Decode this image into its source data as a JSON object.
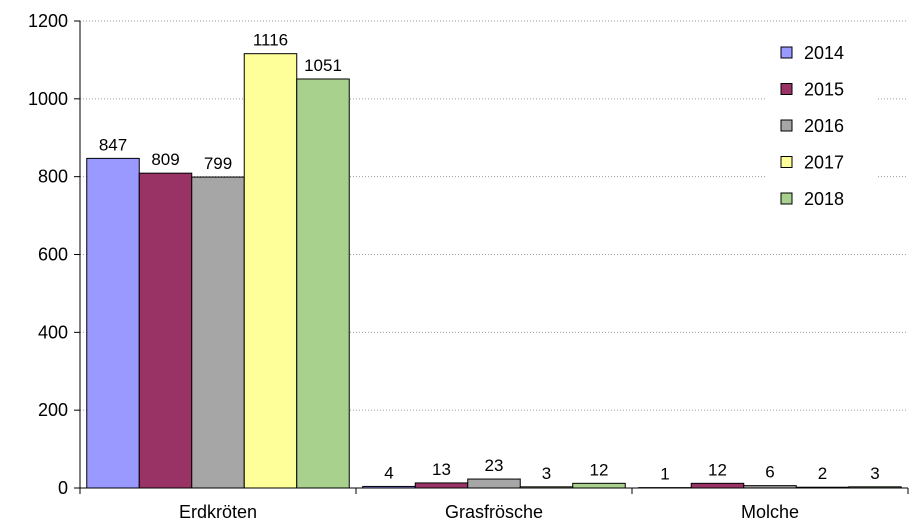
{
  "chart_data": {
    "type": "bar",
    "title": "",
    "xlabel": "",
    "ylabel": "",
    "categories": [
      "Erdkröten",
      "Grasfrösche",
      "Molche"
    ],
    "ylim": [
      0,
      1200
    ],
    "yticks": [
      0,
      200,
      400,
      600,
      800,
      1000,
      1200
    ],
    "grid": "horizontal dotted",
    "legend_position": "top-right",
    "series": [
      {
        "name": "2014",
        "color": "#9999ff",
        "values": [
          847,
          4,
          1
        ]
      },
      {
        "name": "2015",
        "color": "#993366",
        "values": [
          809,
          13,
          12
        ]
      },
      {
        "name": "2016",
        "color": "#a6a6a6",
        "values": [
          799,
          23,
          6
        ]
      },
      {
        "name": "2017",
        "color": "#ffff99",
        "values": [
          1116,
          3,
          2
        ]
      },
      {
        "name": "2018",
        "color": "#a9d18e",
        "values": [
          1051,
          12,
          3
        ]
      }
    ]
  }
}
